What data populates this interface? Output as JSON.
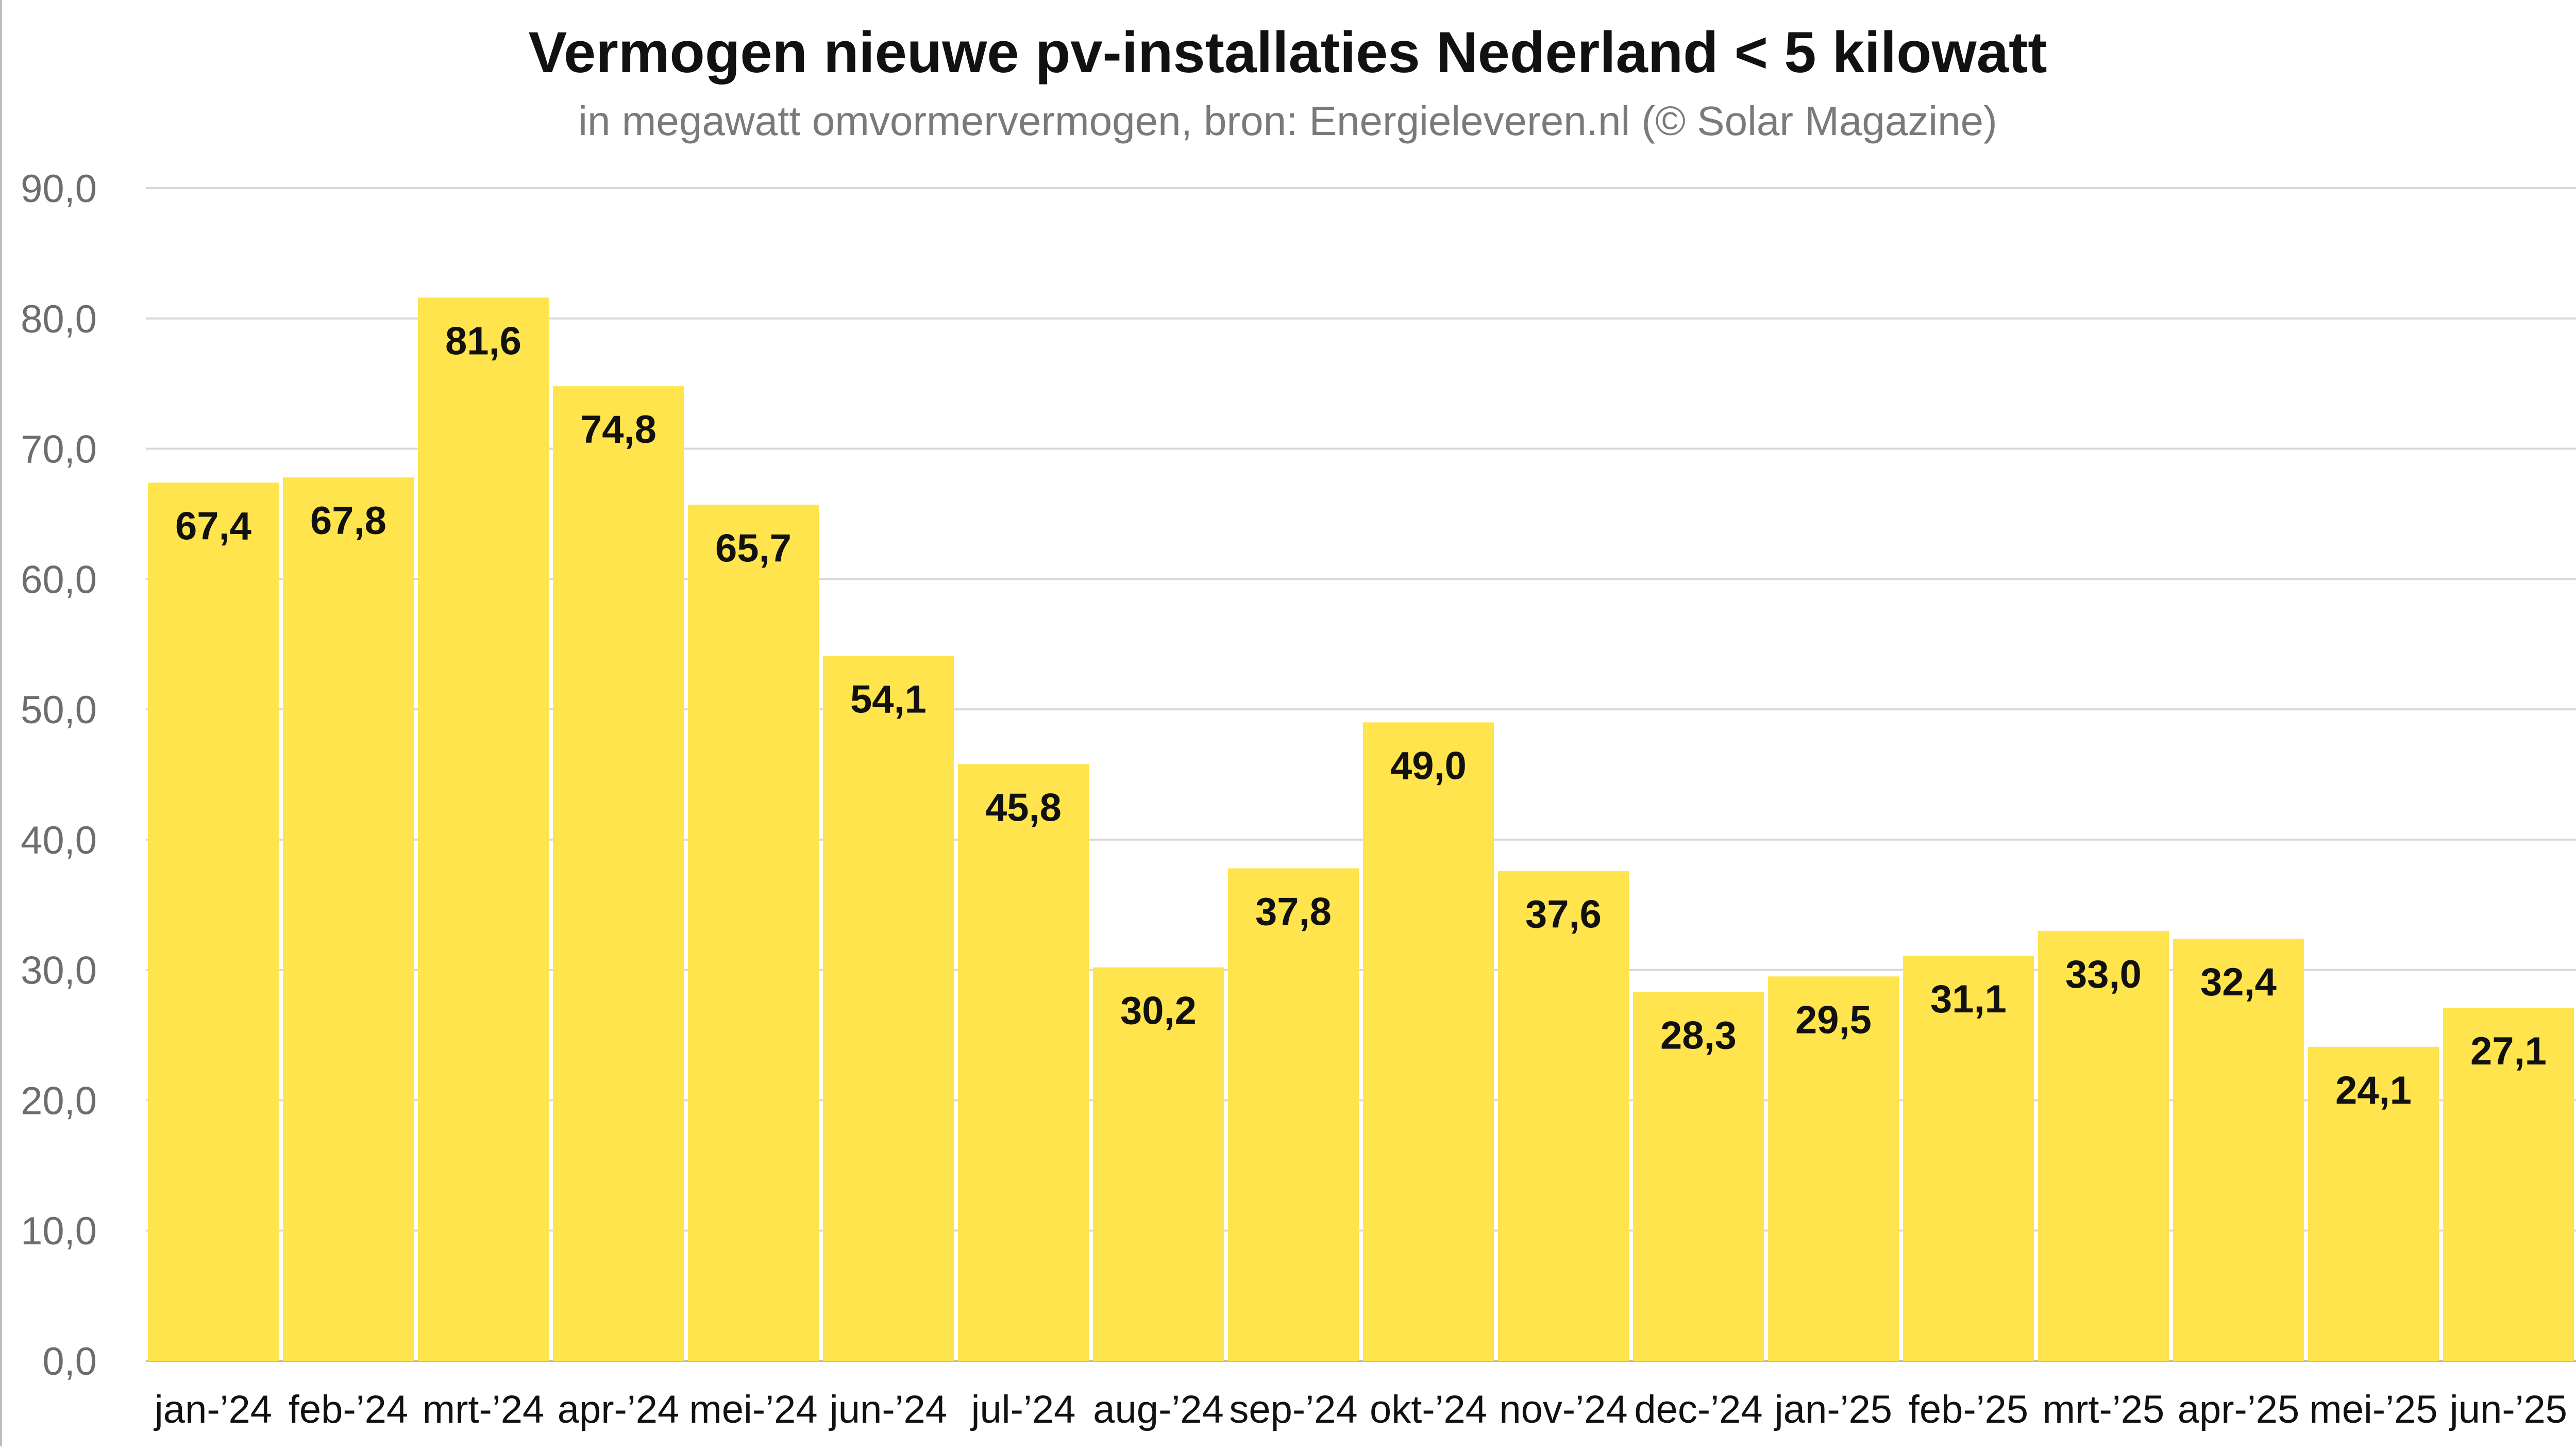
{
  "chart_data": {
    "type": "bar",
    "title": "Vermogen nieuwe pv-installaties Nederland < 5 kilowatt",
    "subtitle": "in megawatt omvormervermogen, bron: Energieleveren.nl (© Solar Magazine)",
    "categories": [
      "jan-’24",
      "feb-’24",
      "mrt-’24",
      "apr-’24",
      "mei-’24",
      "jun-’24",
      "jul-’24",
      "aug-’24",
      "sep-’24",
      "okt-’24",
      "nov-’24",
      "dec-’24",
      "jan-’25",
      "feb-’25",
      "mrt-’25",
      "apr-’25",
      "mei-’25",
      "jun-’25"
    ],
    "values": [
      67.4,
      67.8,
      81.6,
      74.8,
      65.7,
      54.1,
      45.8,
      30.2,
      37.8,
      49.0,
      37.6,
      28.3,
      29.5,
      31.1,
      33.0,
      32.4,
      24.1,
      27.1
    ],
    "value_labels": [
      "67,4",
      "67,8",
      "81,6",
      "74,8",
      "65,7",
      "54,1",
      "45,8",
      "30,2",
      "37,8",
      "49,0",
      "37,6",
      "28,3",
      "29,5",
      "31,1",
      "33,0",
      "32,4",
      "24,1",
      "27,1"
    ],
    "ylim": [
      0,
      90
    ],
    "yticks": [
      0,
      10,
      20,
      30,
      40,
      50,
      60,
      70,
      80,
      90
    ],
    "ytick_labels": [
      "0,0",
      "10,0",
      "20,0",
      "30,0",
      "40,0",
      "50,0",
      "60,0",
      "70,0",
      "80,0",
      "90,0"
    ],
    "xlabel": "",
    "ylabel": "",
    "grid": true,
    "legend": "none",
    "colors": {
      "bar": "#FFE44D",
      "background": "#FFFFFF",
      "grid": "#D9D9D9",
      "text": "#111111",
      "tick_text": "#6D6D6D",
      "subtitle": "#7A7A7A"
    }
  }
}
